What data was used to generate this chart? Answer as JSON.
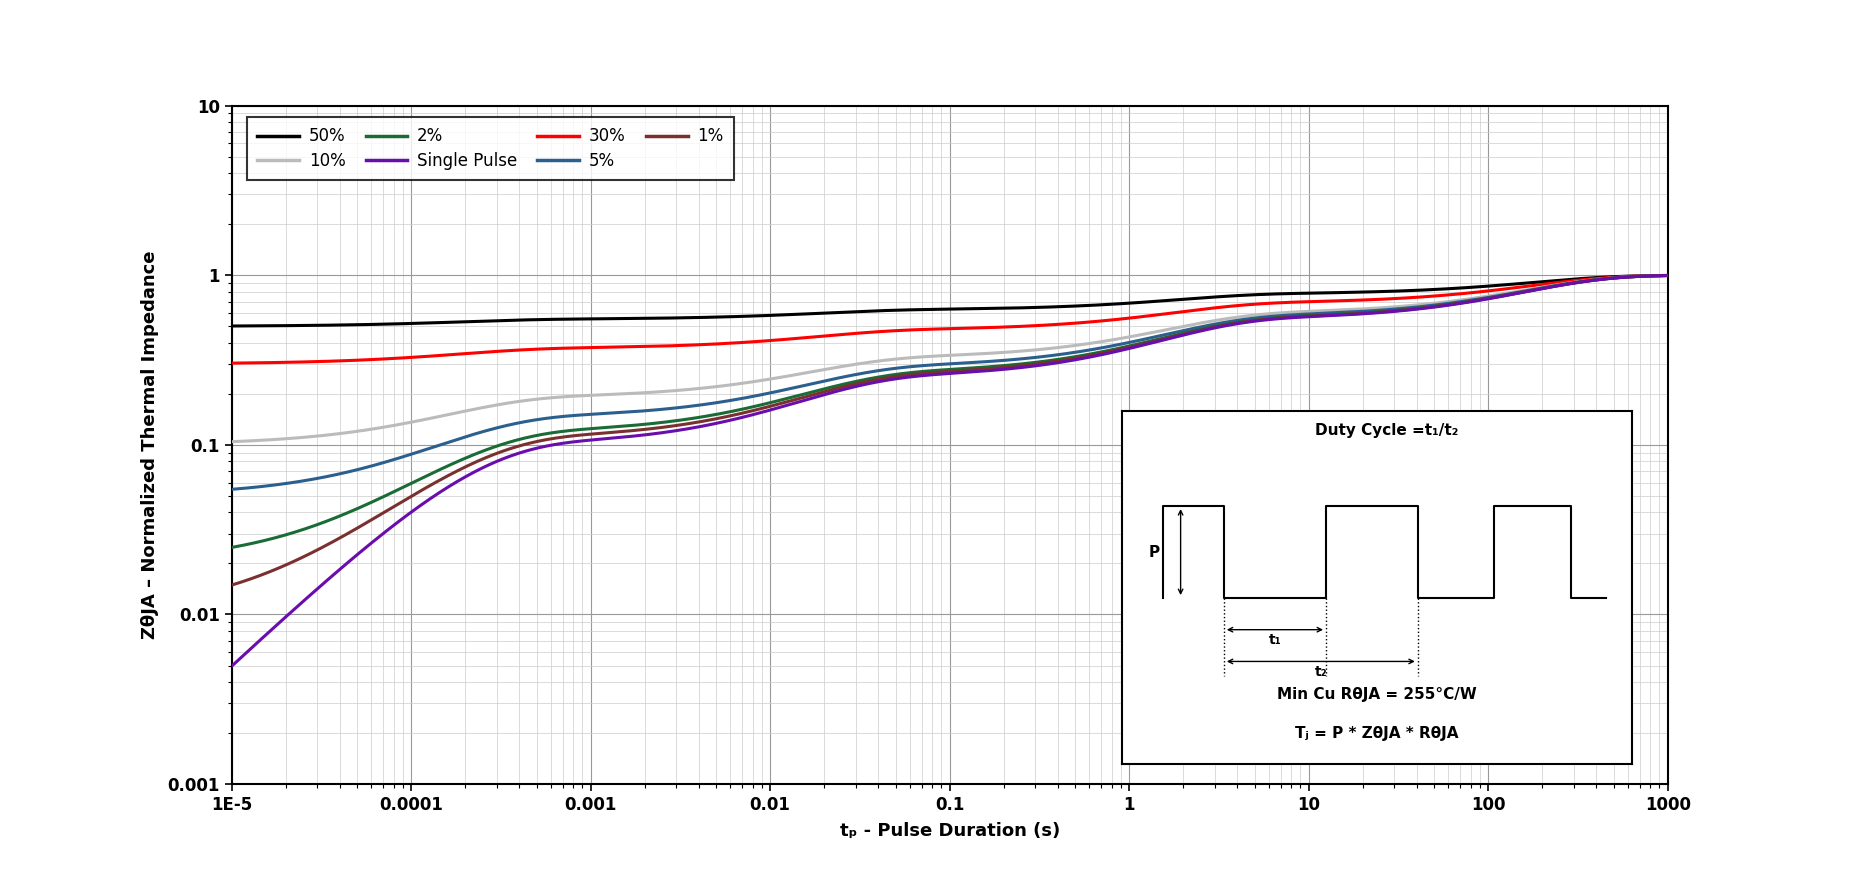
{
  "xlabel": "tₚ - Pulse Duration (s)",
  "ylabel": "ZθJA – Normalized Thermal Impedance",
  "xlim": [
    1e-05,
    1000
  ],
  "ylim": [
    0.001,
    10
  ],
  "curves": {
    "50%": {
      "color": "#000000",
      "lw": 2.2,
      "duty": 0.5
    },
    "30%": {
      "color": "#ff0000",
      "lw": 2.2,
      "duty": 0.3
    },
    "10%": {
      "color": "#bbbbbb",
      "lw": 2.2,
      "duty": 0.1
    },
    "5%": {
      "color": "#2b5f8e",
      "lw": 2.2,
      "duty": 0.05
    },
    "2%": {
      "color": "#1a6b35",
      "lw": 2.2,
      "duty": 0.02
    },
    "1%": {
      "color": "#7b3030",
      "lw": 2.2,
      "duty": 0.01
    },
    "Single Pulse": {
      "color": "#6a0dad",
      "lw": 2.2,
      "duty": 0.0
    }
  },
  "legend_order": [
    "50%",
    "10%",
    "2%",
    "Single Pulse",
    "30%",
    "5%",
    "1%"
  ],
  "grid_color_major": "#999999",
  "grid_color_minor": "#cccccc",
  "background_color": "#ffffff"
}
